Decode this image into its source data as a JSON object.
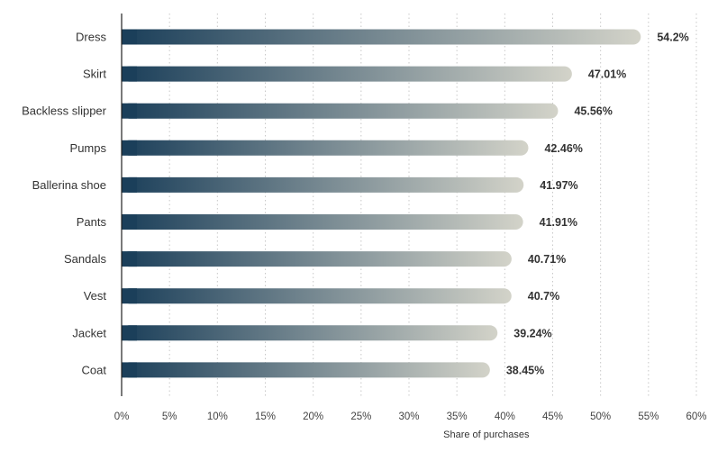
{
  "chart_data": {
    "type": "bar",
    "orientation": "horizontal",
    "categories": [
      "Dress",
      "Skirt",
      "Backless slipper",
      "Pumps",
      "Ballerina shoe",
      "Pants",
      "Sandals",
      "Vest",
      "Jacket",
      "Coat"
    ],
    "values": [
      54.2,
      47.01,
      45.56,
      42.46,
      41.97,
      41.91,
      40.71,
      40.7,
      39.24,
      38.45
    ],
    "value_labels": [
      "54.2%",
      "47.01%",
      "45.56%",
      "42.46%",
      "41.97%",
      "41.91%",
      "40.71%",
      "40.7%",
      "39.24%",
      "38.45%"
    ],
    "xlabel": "Share of purchases",
    "xlim": [
      0,
      60
    ],
    "x_ticks": [
      0,
      5,
      10,
      15,
      20,
      25,
      30,
      35,
      40,
      45,
      50,
      55,
      60
    ],
    "x_tick_labels": [
      "0%",
      "5%",
      "10%",
      "15%",
      "20%",
      "25%",
      "30%",
      "35%",
      "40%",
      "45%",
      "50%",
      "55%",
      "60%"
    ],
    "grid": "vertical dotted",
    "colors": {
      "bar_gradient_start": "#1b3f5a",
      "bar_gradient_end": "#d3d3c9",
      "grid": "#c8c8c8",
      "axis": "#222222"
    }
  }
}
